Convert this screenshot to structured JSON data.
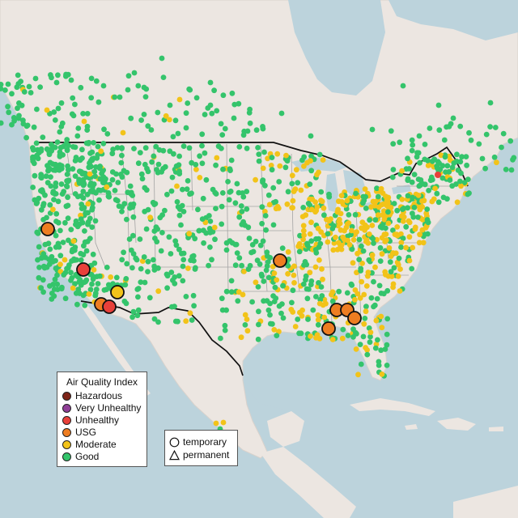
{
  "legend": {
    "title": "Air Quality Index",
    "categories": [
      {
        "label": "Hazardous",
        "color": "#7e2418"
      },
      {
        "label": "Very Unhealthy",
        "color": "#8f3f97"
      },
      {
        "label": "Unhealthy",
        "color": "#e8403a"
      },
      {
        "label": "USG",
        "color": "#ee7d21"
      },
      {
        "label": "Moderate",
        "color": "#f2c319"
      },
      {
        "label": "Good",
        "color": "#34c46b"
      }
    ]
  },
  "monitor_legend": {
    "items": [
      {
        "label": "temporary",
        "shape": "circle-icon"
      },
      {
        "label": "permanent",
        "shape": "triangle-icon"
      }
    ]
  },
  "colors": {
    "water": "#bcd3dc",
    "land": "#ece6e1",
    "border": "#111111",
    "state_lines": "#a4a4a4"
  },
  "dominant_categories": {
    "west": "Good",
    "midwest": "Moderate",
    "southeast": "Moderate"
  }
}
